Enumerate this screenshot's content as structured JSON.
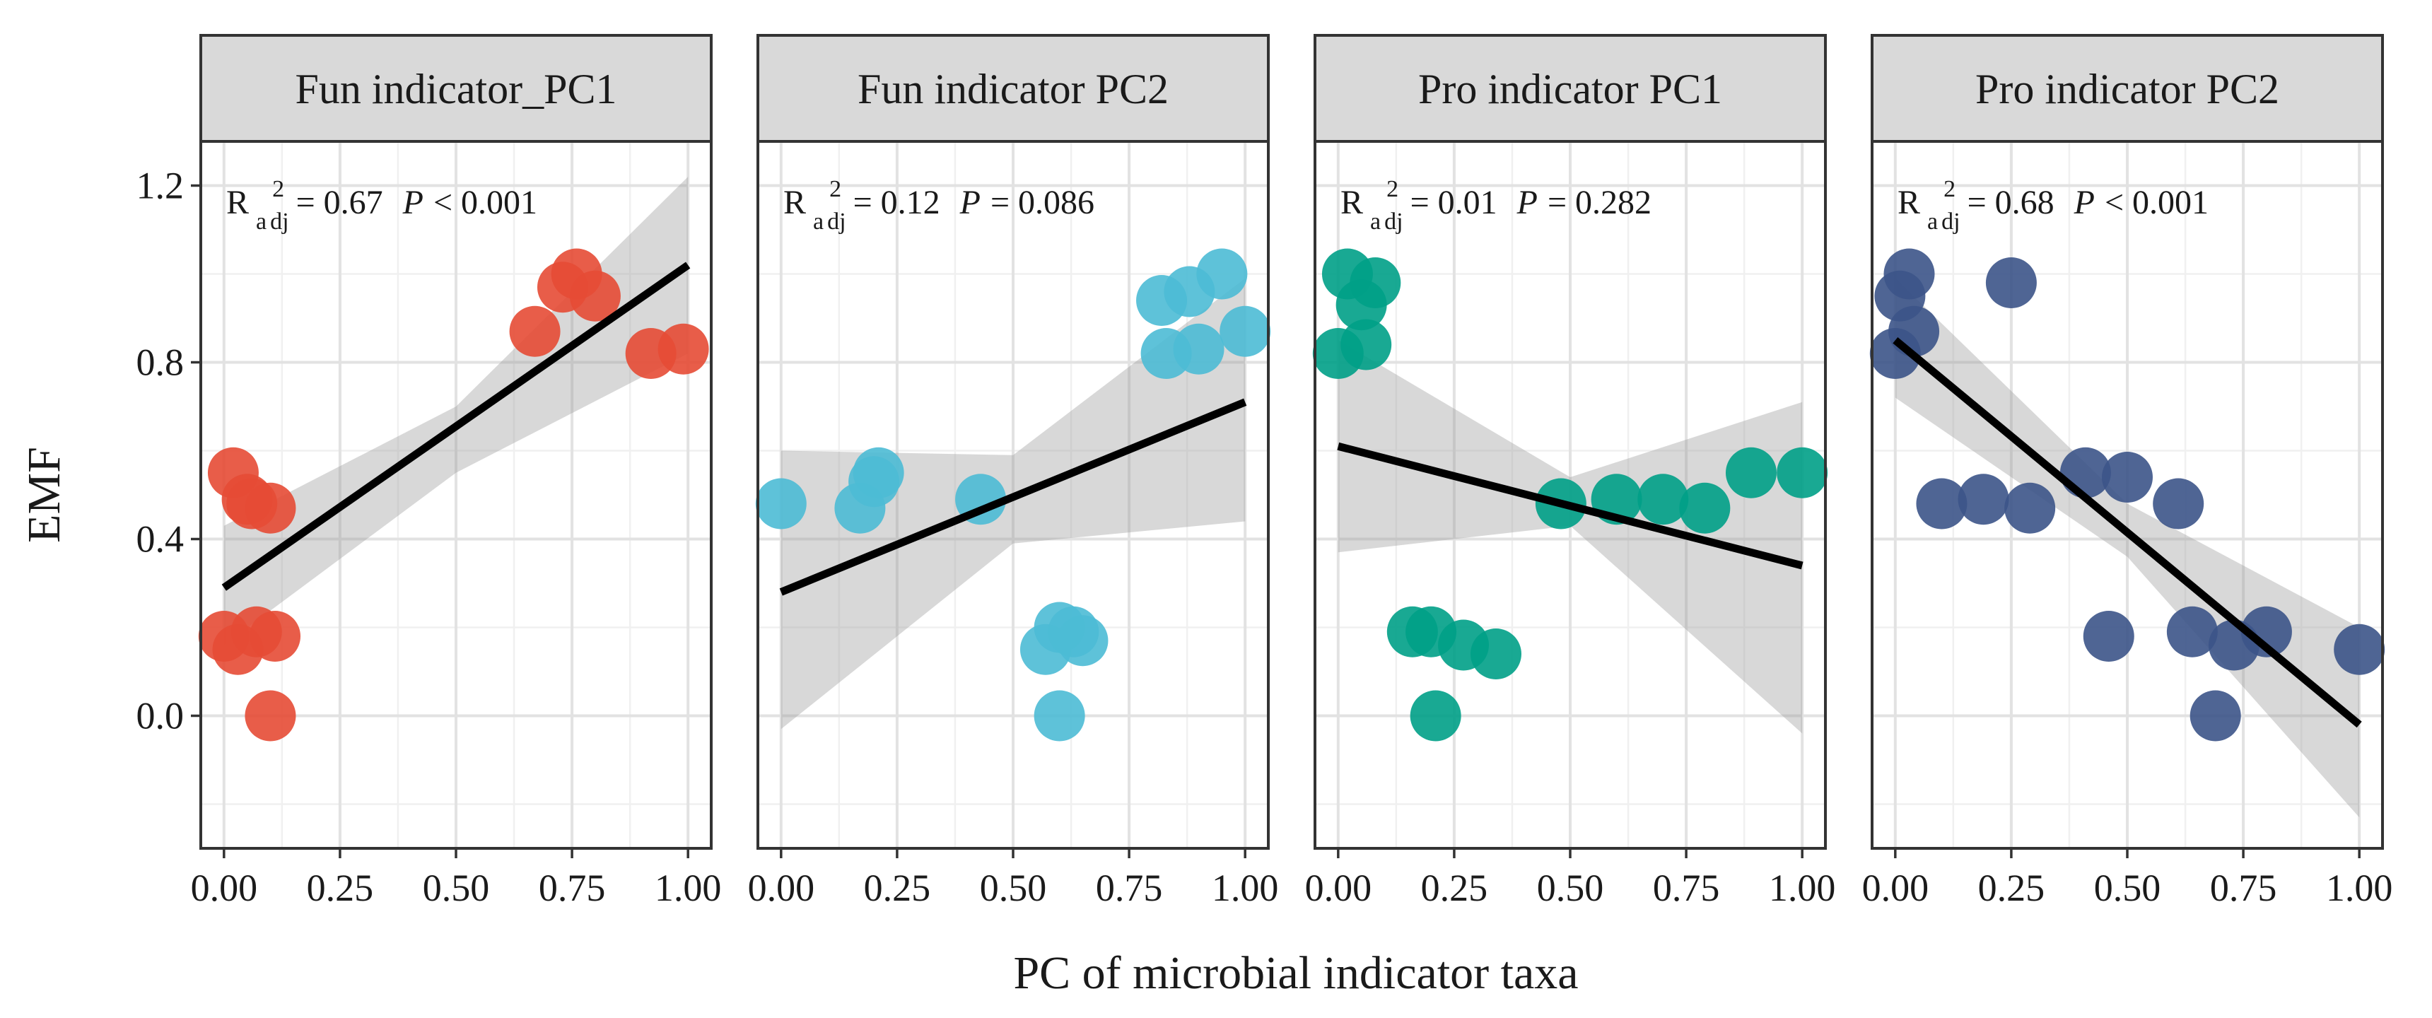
{
  "chart_data": {
    "type": "scatter",
    "title": "",
    "xlabel": "PC of microbial indicator taxa",
    "ylabel": "EMF",
    "xlim": [
      -0.05,
      1.05
    ],
    "ylim": [
      -0.3,
      1.3
    ],
    "x_ticks": [
      "0.00",
      "0.25",
      "0.50",
      "0.75",
      "1.00"
    ],
    "y_ticks": [
      "0.0",
      "0.4",
      "0.8",
      "1.2"
    ],
    "grid": true,
    "panels": [
      {
        "title": "Fun indicator_PC1",
        "color": "#e64b35",
        "r2_value": "= 0.67",
        "p_value": "< 0.001",
        "fit": {
          "x": [
            0.0,
            1.0
          ],
          "y": [
            0.29,
            1.02
          ]
        },
        "ci": {
          "x": [
            0.0,
            0.5,
            1.0
          ],
          "upper": [
            0.43,
            0.7,
            1.22
          ],
          "lower": [
            0.16,
            0.55,
            0.82
          ]
        },
        "points": [
          {
            "x": 0.02,
            "y": 0.55
          },
          {
            "x": 0.05,
            "y": 0.49
          },
          {
            "x": 0.06,
            "y": 0.48
          },
          {
            "x": 0.1,
            "y": 0.47
          },
          {
            "x": 0.0,
            "y": 0.18
          },
          {
            "x": 0.03,
            "y": 0.15
          },
          {
            "x": 0.07,
            "y": 0.19
          },
          {
            "x": 0.11,
            "y": 0.18
          },
          {
            "x": 0.1,
            "y": 0.0
          },
          {
            "x": 0.67,
            "y": 0.87
          },
          {
            "x": 0.73,
            "y": 0.97
          },
          {
            "x": 0.76,
            "y": 1.0
          },
          {
            "x": 0.8,
            "y": 0.95
          },
          {
            "x": 0.92,
            "y": 0.82
          },
          {
            "x": 0.99,
            "y": 0.83
          }
        ]
      },
      {
        "title": "Fun indicator PC2",
        "color": "#4dbbd5",
        "r2_value": "= 0.12",
        "p_value": "= 0.086",
        "fit": {
          "x": [
            0.0,
            1.0
          ],
          "y": [
            0.28,
            0.71
          ]
        },
        "ci": {
          "x": [
            0.0,
            0.5,
            1.0
          ],
          "upper": [
            0.6,
            0.59,
            0.99
          ],
          "lower": [
            -0.03,
            0.39,
            0.44
          ]
        },
        "points": [
          {
            "x": 0.0,
            "y": 0.48
          },
          {
            "x": 0.17,
            "y": 0.47
          },
          {
            "x": 0.2,
            "y": 0.53
          },
          {
            "x": 0.21,
            "y": 0.55
          },
          {
            "x": 0.43,
            "y": 0.49
          },
          {
            "x": 0.57,
            "y": 0.15
          },
          {
            "x": 0.6,
            "y": 0.2
          },
          {
            "x": 0.63,
            "y": 0.19
          },
          {
            "x": 0.65,
            "y": 0.17
          },
          {
            "x": 0.6,
            "y": 0.0
          },
          {
            "x": 0.82,
            "y": 0.94
          },
          {
            "x": 0.83,
            "y": 0.82
          },
          {
            "x": 0.88,
            "y": 0.96
          },
          {
            "x": 0.9,
            "y": 0.83
          },
          {
            "x": 0.95,
            "y": 1.0
          },
          {
            "x": 1.0,
            "y": 0.87
          }
        ]
      },
      {
        "title": "Pro indicator PC1",
        "color": "#00a087",
        "r2_value": "= 0.01",
        "p_value": "= 0.282",
        "fit": {
          "x": [
            0.0,
            1.0
          ],
          "y": [
            0.61,
            0.34
          ]
        },
        "ci": {
          "x": [
            0.0,
            0.5,
            1.0
          ],
          "upper": [
            0.85,
            0.54,
            0.71
          ],
          "lower": [
            0.37,
            0.43,
            -0.04
          ]
        },
        "points": [
          {
            "x": 0.0,
            "y": 0.82
          },
          {
            "x": 0.02,
            "y": 1.0
          },
          {
            "x": 0.05,
            "y": 0.93
          },
          {
            "x": 0.06,
            "y": 0.84
          },
          {
            "x": 0.08,
            "y": 0.98
          },
          {
            "x": 0.16,
            "y": 0.19
          },
          {
            "x": 0.2,
            "y": 0.19
          },
          {
            "x": 0.27,
            "y": 0.16
          },
          {
            "x": 0.34,
            "y": 0.14
          },
          {
            "x": 0.21,
            "y": 0.0
          },
          {
            "x": 0.48,
            "y": 0.48
          },
          {
            "x": 0.6,
            "y": 0.49
          },
          {
            "x": 0.7,
            "y": 0.49
          },
          {
            "x": 0.79,
            "y": 0.47
          },
          {
            "x": 0.89,
            "y": 0.55
          },
          {
            "x": 1.0,
            "y": 0.55
          }
        ]
      },
      {
        "title": "Pro indicator PC2",
        "color": "#3c5488",
        "r2_value": "= 0.68",
        "p_value": "< 0.001",
        "fit": {
          "x": [
            0.0,
            1.0
          ],
          "y": [
            0.85,
            -0.02
          ]
        },
        "ci": {
          "x": [
            0.0,
            0.5,
            1.0
          ],
          "upper": [
            0.99,
            0.48,
            0.2
          ],
          "lower": [
            0.72,
            0.36,
            -0.23
          ]
        },
        "points": [
          {
            "x": 0.0,
            "y": 0.82
          },
          {
            "x": 0.01,
            "y": 0.95
          },
          {
            "x": 0.03,
            "y": 1.0
          },
          {
            "x": 0.04,
            "y": 0.87
          },
          {
            "x": 0.25,
            "y": 0.98
          },
          {
            "x": 0.1,
            "y": 0.48
          },
          {
            "x": 0.19,
            "y": 0.49
          },
          {
            "x": 0.29,
            "y": 0.47
          },
          {
            "x": 0.41,
            "y": 0.55
          },
          {
            "x": 0.5,
            "y": 0.54
          },
          {
            "x": 0.61,
            "y": 0.48
          },
          {
            "x": 0.46,
            "y": 0.18
          },
          {
            "x": 0.64,
            "y": 0.19
          },
          {
            "x": 0.73,
            "y": 0.16
          },
          {
            "x": 0.8,
            "y": 0.19
          },
          {
            "x": 0.69,
            "y": 0.0
          },
          {
            "x": 1.0,
            "y": 0.15
          }
        ]
      }
    ]
  }
}
